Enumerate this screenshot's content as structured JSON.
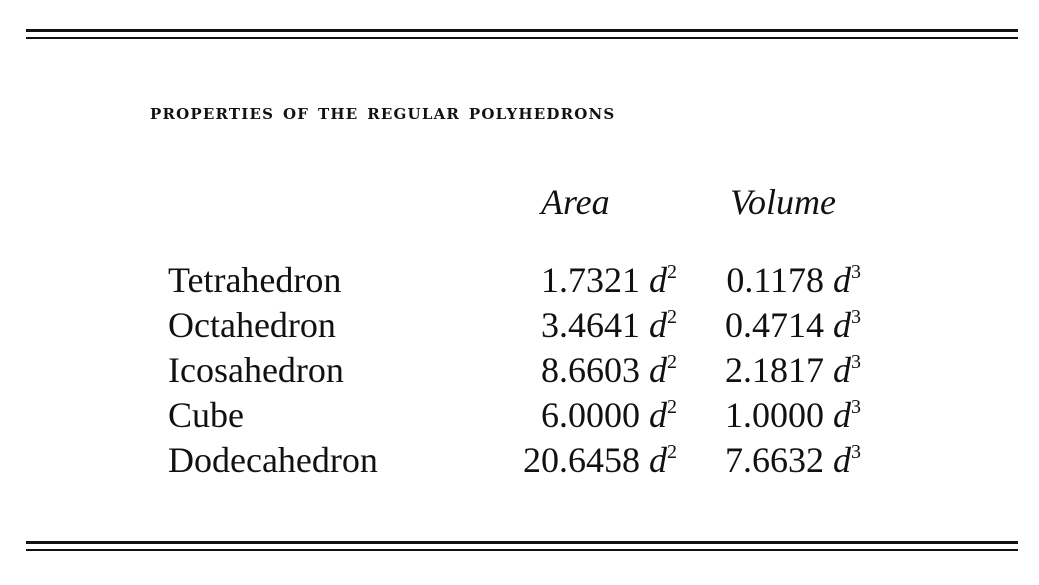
{
  "table": {
    "title": "PROPERTIES OF THE REGULAR POLYHEDRONS",
    "headers": {
      "area": "Area",
      "volume": "Volume"
    },
    "rows": [
      {
        "name": "Tetrahedron",
        "area": "1.7321",
        "volume": "0.1178"
      },
      {
        "name": "Octahedron",
        "area": "3.4641",
        "volume": "0.4714"
      },
      {
        "name": "Icosahedron",
        "area": "8.6603",
        "volume": "2.1817"
      },
      {
        "name": "Cube",
        "area": "6.0000",
        "volume": "1.0000"
      },
      {
        "name": "Dodecahedron",
        "area": "20.6458",
        "volume": "7.6632"
      }
    ],
    "variable": "d",
    "area_exponent": "2",
    "volume_exponent": "3"
  }
}
